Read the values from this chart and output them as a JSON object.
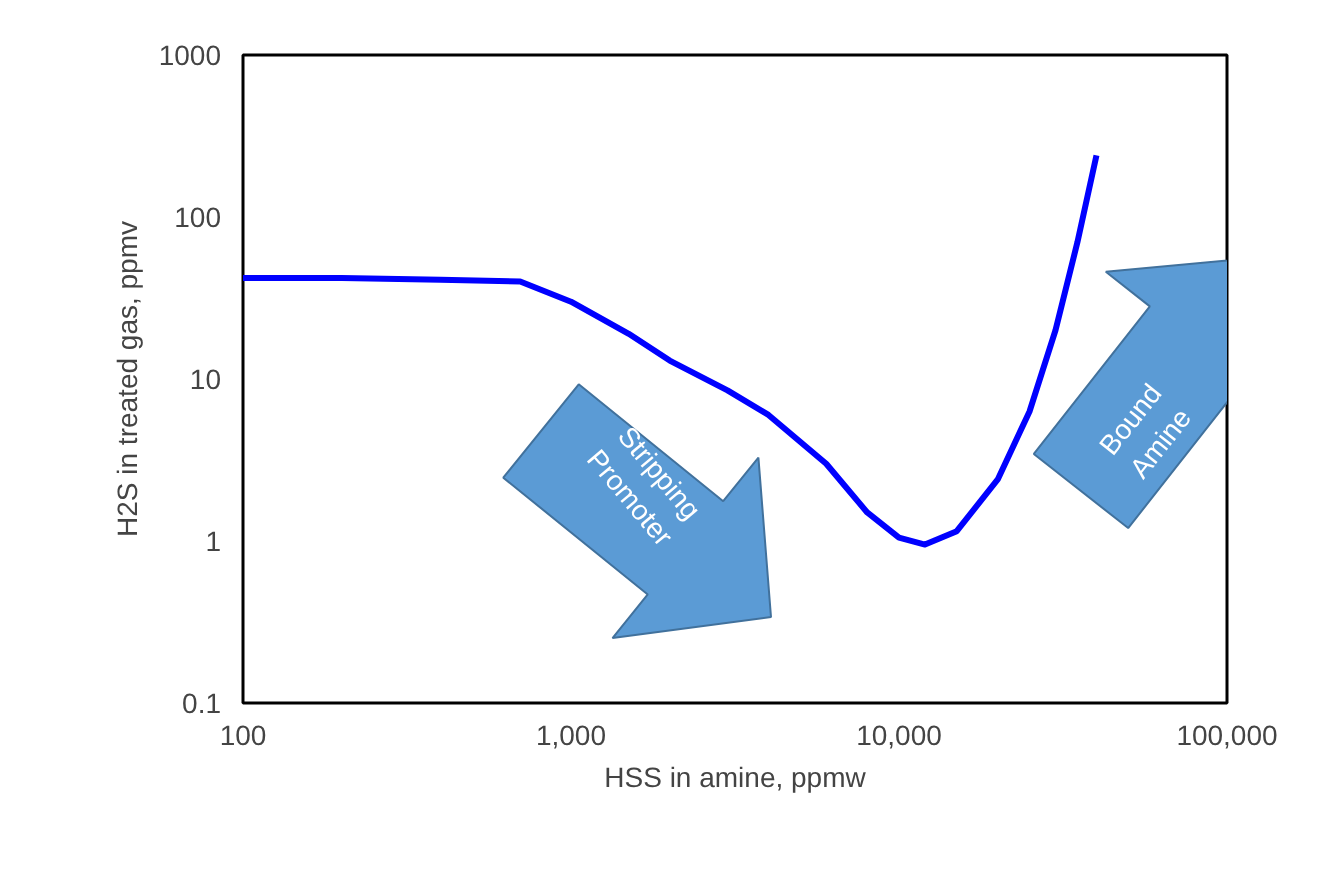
{
  "chart_data": {
    "type": "line",
    "xlabel": "HSS in amine, ppmw",
    "ylabel": "H2S in treated gas, ppmv",
    "log": "xy",
    "xlim": [
      100,
      100000
    ],
    "ylim": [
      0.1,
      1000
    ],
    "xticks": [
      100,
      {
        "value": 1000,
        "label": "1,000"
      },
      {
        "value": 10000,
        "label": "10,000"
      },
      {
        "value": 100000,
        "label": "100,000"
      }
    ],
    "yticks": [
      0.1,
      1,
      10,
      100,
      1000
    ],
    "x": [
      100,
      200,
      400,
      700,
      1000,
      1500,
      2000,
      3000,
      4000,
      6000,
      8000,
      10000,
      12000,
      15000,
      20000,
      25000,
      30000,
      35000,
      40000
    ],
    "series": [
      {
        "color": "#0000ff",
        "values": [
          42,
          42,
          41,
          40,
          30,
          19,
          13,
          8.5,
          6,
          3,
          1.5,
          1.05,
          0.95,
          1.15,
          2.4,
          6.3,
          20,
          70,
          240
        ]
      }
    ],
    "annotations": [
      "Stripping Promoter",
      "Bound Amine"
    ]
  }
}
